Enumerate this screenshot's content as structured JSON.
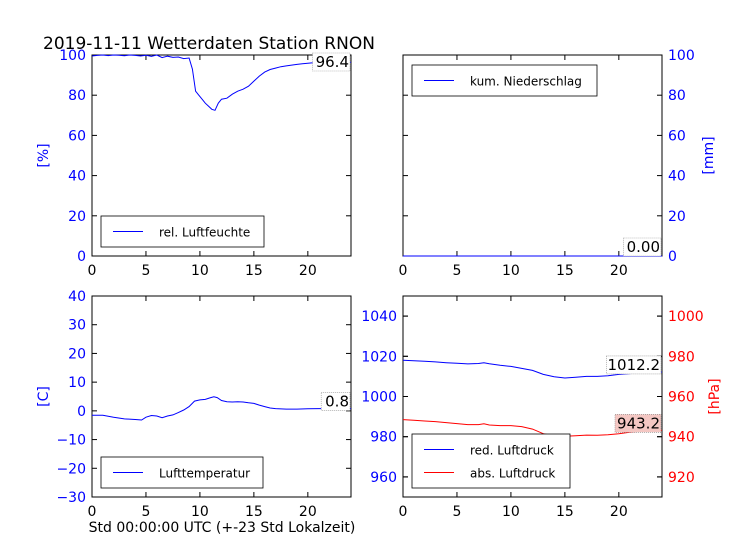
{
  "title": "2019-11-11 Wetterdaten Station RNON",
  "footer_xlabel": "Std 00:00:00 UTC (+-23 Std Lokalzeit)",
  "colors": {
    "blue": "#0000ff",
    "red": "#ff0000",
    "last_label_bg": "#f4c7c3"
  },
  "chart_data": [
    {
      "id": "humidity",
      "type": "line",
      "ylabel": "[%]",
      "ylabel_color": "#0000ff",
      "xlim": [
        0,
        24
      ],
      "ylim": [
        0,
        100
      ],
      "xticks": [
        0,
        5,
        10,
        15,
        20
      ],
      "yticks": [
        0,
        20,
        40,
        60,
        80,
        100
      ],
      "legend_loc": "lower-left",
      "last_value_label": "96.4",
      "series": [
        {
          "name": "rel. Luftfeuchte",
          "color": "#0000ff",
          "x": [
            0,
            0.5,
            1,
            1.5,
            2,
            2.5,
            3,
            3.5,
            4,
            4.5,
            5,
            5.5,
            6,
            6.5,
            7,
            7.5,
            8,
            8.5,
            9,
            9.3,
            9.6,
            9.9,
            10.2,
            10.5,
            10.8,
            11.1,
            11.4,
            11.7,
            12,
            12.5,
            13,
            13.5,
            14,
            14.5,
            15,
            15.5,
            16,
            16.5,
            17,
            17.5,
            18,
            18.5,
            19,
            19.5,
            20,
            20.5,
            21,
            21.5,
            22,
            22.5,
            23,
            23.5,
            24
          ],
          "y": [
            99.5,
            99.8,
            100,
            99.7,
            100,
            99.9,
            99.6,
            100,
            99.8,
            99.5,
            99.9,
            99.3,
            100,
            98.7,
            99.4,
            98.8,
            99,
            98.2,
            98.5,
            93,
            82,
            80,
            78,
            76,
            74.5,
            73,
            72.5,
            76,
            78,
            78.5,
            80.5,
            82,
            83,
            84.5,
            87,
            89.5,
            91.5,
            92.8,
            93.5,
            94.2,
            94.6,
            95,
            95.3,
            95.6,
            95.9,
            96.1,
            96.2,
            96.3,
            96.3,
            96.4,
            96.4,
            96.4,
            96.4
          ]
        }
      ]
    },
    {
      "id": "precipitation",
      "type": "line",
      "ylabel": "[mm]",
      "ylabel_color": "#0000ff",
      "y_axis_side": "right",
      "xlim": [
        0,
        24
      ],
      "ylim": [
        0,
        100
      ],
      "xticks": [
        0,
        5,
        10,
        15,
        20
      ],
      "yticks": [
        0,
        20,
        40,
        60,
        80,
        100
      ],
      "legend_loc": "upper-left",
      "last_value_label": "0.00",
      "series": [
        {
          "name": "kum. Niederschlag",
          "color": "#0000ff",
          "x": [
            0,
            24
          ],
          "y": [
            0,
            0
          ]
        }
      ]
    },
    {
      "id": "temperature",
      "type": "line",
      "ylabel": "[C]",
      "ylabel_color": "#0000ff",
      "xlim": [
        0,
        24
      ],
      "ylim": [
        -30,
        40
      ],
      "xticks": [
        0,
        5,
        10,
        15,
        20
      ],
      "yticks": [
        -30,
        -20,
        -10,
        0,
        10,
        20,
        30,
        40
      ],
      "legend_loc": "lower-left",
      "last_value_label": "0.8",
      "series": [
        {
          "name": "Lufttemperatur",
          "color": "#0000ff",
          "x": [
            0,
            1,
            2,
            3,
            4,
            4.6,
            5,
            5.5,
            6,
            6.5,
            7,
            7.5,
            8,
            8.5,
            9,
            9.5,
            10,
            10.5,
            11,
            11.3,
            11.6,
            12,
            12.5,
            13,
            13.5,
            14,
            14.5,
            15,
            15.5,
            16,
            16.5,
            17,
            18,
            19,
            20,
            21,
            22,
            23,
            24
          ],
          "y": [
            -1.5,
            -1.5,
            -2.2,
            -2.8,
            -3,
            -3.2,
            -2.2,
            -1.6,
            -1.8,
            -2.4,
            -1.8,
            -1.4,
            -0.6,
            0.3,
            1.5,
            3.4,
            3.8,
            4,
            4.6,
            4.9,
            4.6,
            3.6,
            3.2,
            3.1,
            3.2,
            3.1,
            2.8,
            2.6,
            2,
            1.5,
            1,
            0.8,
            0.6,
            0.6,
            0.7,
            0.8,
            0.8,
            0.8,
            0.8
          ]
        }
      ]
    },
    {
      "id": "pressure",
      "type": "line",
      "xlim": [
        0,
        24
      ],
      "ylim_left": [
        950,
        1050
      ],
      "yticks_left": [
        960,
        980,
        1000,
        1020,
        1040
      ],
      "left_color": "#0000ff",
      "ylim_right": [
        910,
        1010
      ],
      "yticks_right": [
        920,
        940,
        960,
        980,
        1000
      ],
      "right_color": "#ff0000",
      "ylabel_right": "[hPa]",
      "xticks": [
        0,
        5,
        10,
        15,
        20
      ],
      "legend_loc": "lower-left",
      "last_value_labels": [
        "1012.2",
        "943.2"
      ],
      "series": [
        {
          "name": "red. Luftdruck",
          "color": "#0000ff",
          "axis": "left",
          "x": [
            0,
            1,
            2,
            3,
            4,
            5,
            6,
            7,
            7.5,
            8,
            9,
            10,
            11,
            12,
            13,
            14,
            15,
            16,
            17,
            18,
            19,
            20,
            21,
            22,
            23,
            24
          ],
          "y": [
            1018,
            1017.8,
            1017.5,
            1017.2,
            1016.8,
            1016.5,
            1016.2,
            1016.4,
            1016.8,
            1016.3,
            1015.5,
            1015,
            1014,
            1013,
            1011,
            1009.8,
            1009.2,
            1009.6,
            1010,
            1010,
            1010.3,
            1011,
            1011.4,
            1011.8,
            1012,
            1012.2
          ]
        },
        {
          "name": "abs. Luftdruck",
          "color": "#ff0000",
          "axis": "right",
          "x": [
            0,
            1,
            2,
            3,
            4,
            5,
            6,
            7,
            7.5,
            8,
            9,
            10,
            11,
            12,
            13,
            14,
            15,
            16,
            17,
            18,
            19,
            20,
            21,
            22,
            23,
            24
          ],
          "y": [
            948.5,
            948.2,
            947.8,
            947.5,
            947,
            946.5,
            946,
            946,
            946.4,
            945.8,
            945.5,
            945.5,
            945,
            943.8,
            941.5,
            940.5,
            940.2,
            940.5,
            940.8,
            940.7,
            941,
            941.5,
            942.2,
            942.7,
            943,
            943.2
          ]
        }
      ]
    }
  ]
}
